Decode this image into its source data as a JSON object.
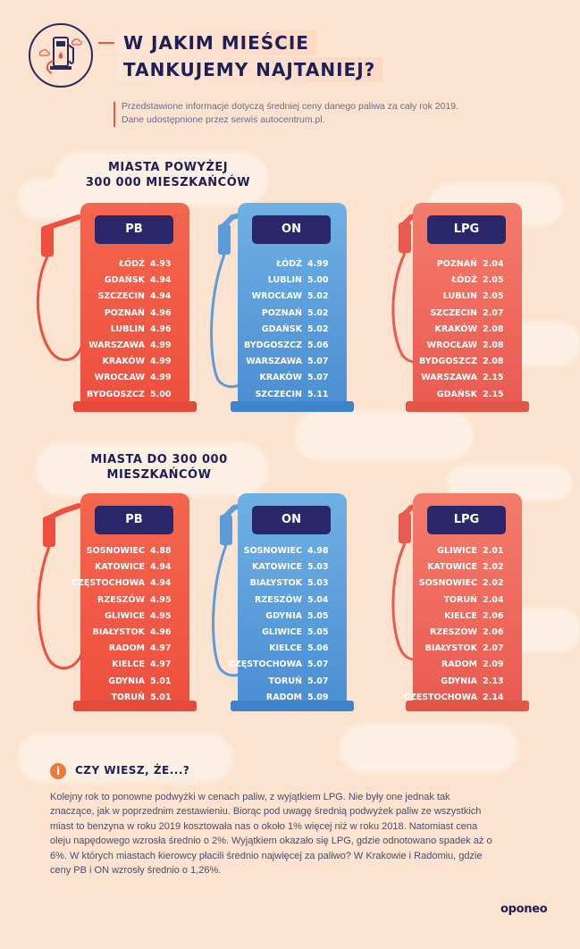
{
  "header": {
    "title_line1": "W JAKIM MIEŚCIE",
    "title_line2": "TANKUJEMY NAJTANIEJ?",
    "note": "Przedstawione informacje dotyczą średniej ceny danego paliwa za cały rok 2019. Dane udostępnione przez serwis autocentrum.pl."
  },
  "section1": {
    "heading_line1": "MIASTA POWYŻEJ",
    "heading_line2": "300 000 MIESZKAŃCÓW",
    "pumps": [
      {
        "label": "PB",
        "rows": [
          {
            "city": "ŁÓDŹ",
            "price": "4.93"
          },
          {
            "city": "GDAŃSK",
            "price": "4.94"
          },
          {
            "city": "SZCZECIN",
            "price": "4.94"
          },
          {
            "city": "POZNAŃ",
            "price": "4.96"
          },
          {
            "city": "LUBLIN",
            "price": "4.96"
          },
          {
            "city": "WARSZAWA",
            "price": "4.99"
          },
          {
            "city": "KRAKÓW",
            "price": "4.99"
          },
          {
            "city": "WROCŁAW",
            "price": "4.99"
          },
          {
            "city": "BYDGOSZCZ",
            "price": "5.00"
          }
        ]
      },
      {
        "label": "ON",
        "rows": [
          {
            "city": "ŁÓDŹ",
            "price": "4.99"
          },
          {
            "city": "LUBLIN",
            "price": "5.00"
          },
          {
            "city": "WROCŁAW",
            "price": "5.02"
          },
          {
            "city": "POZNAŃ",
            "price": "5.02"
          },
          {
            "city": "GDAŃSK",
            "price": "5.02"
          },
          {
            "city": "BYDGOSZCZ",
            "price": "5.06"
          },
          {
            "city": "WARSZAWA",
            "price": "5.07"
          },
          {
            "city": "KRAKÓW",
            "price": "5.07"
          },
          {
            "city": "SZCZECIN",
            "price": "5.11"
          }
        ]
      },
      {
        "label": "LPG",
        "rows": [
          {
            "city": "POZNAŃ",
            "price": "2.04"
          },
          {
            "city": "ŁÓDŹ",
            "price": "2.05"
          },
          {
            "city": "LUBLIN",
            "price": "2.05"
          },
          {
            "city": "SZCZECIN",
            "price": "2.07"
          },
          {
            "city": "KRAKÓW",
            "price": "2.08"
          },
          {
            "city": "WROCŁAW",
            "price": "2.08"
          },
          {
            "city": "BYDGOSZCZ",
            "price": "2.08"
          },
          {
            "city": "WARSZAWA",
            "price": "2.15"
          },
          {
            "city": "GDAŃSK",
            "price": "2.15"
          }
        ]
      }
    ]
  },
  "section2": {
    "heading_line1": "MIASTA DO 300 000",
    "heading_line2": "MIESZKAŃCÓW",
    "pumps": [
      {
        "label": "PB",
        "rows": [
          {
            "city": "SOSNOWIEC",
            "price": "4.88"
          },
          {
            "city": "KATOWICE",
            "price": "4.94"
          },
          {
            "city": "CZĘSTOCHOWA",
            "price": "4.94"
          },
          {
            "city": "RZESZÓW",
            "price": "4.95"
          },
          {
            "city": "GLIWICE",
            "price": "4.95"
          },
          {
            "city": "BIAŁYSTOK",
            "price": "4.96"
          },
          {
            "city": "RADOM",
            "price": "4.97"
          },
          {
            "city": "KIELCE",
            "price": "4.97"
          },
          {
            "city": "GDYNIA",
            "price": "5.01"
          },
          {
            "city": "TORUŃ",
            "price": "5.01"
          }
        ]
      },
      {
        "label": "ON",
        "rows": [
          {
            "city": "SOSNOWIEC",
            "price": "4.98"
          },
          {
            "city": "KATOWICE",
            "price": "5.03"
          },
          {
            "city": "BIAŁYSTOK",
            "price": "5.03"
          },
          {
            "city": "RZESZÓW",
            "price": "5.04"
          },
          {
            "city": "GDYNIA",
            "price": "5.05"
          },
          {
            "city": "GLIWICE",
            "price": "5.05"
          },
          {
            "city": "KIELCE",
            "price": "5.06"
          },
          {
            "city": "CZĘSTOCHOWA",
            "price": "5.07"
          },
          {
            "city": "TORUŃ",
            "price": "5.07"
          },
          {
            "city": "RADOM",
            "price": "5.09"
          }
        ]
      },
      {
        "label": "LPG",
        "rows": [
          {
            "city": "GLIWICE",
            "price": "2.01"
          },
          {
            "city": "KATOWICE",
            "price": "2.02"
          },
          {
            "city": "SOSNOWIEC",
            "price": "2.02"
          },
          {
            "city": "TORUŃ",
            "price": "2.04"
          },
          {
            "city": "KIELCE",
            "price": "2.06"
          },
          {
            "city": "RZESZÓW",
            "price": "2.06"
          },
          {
            "city": "BIAŁYSTOK",
            "price": "2.07"
          },
          {
            "city": "RADOM",
            "price": "2.09"
          },
          {
            "city": "GDYNIA",
            "price": "2.13"
          },
          {
            "city": "CZĘSTOCHOWA",
            "price": "2.14"
          }
        ]
      }
    ]
  },
  "info": {
    "icon": "i",
    "title": "CZY WIESZ, ŻE...?",
    "text": "Kolejny rok to ponowne podwyżki w cenach paliw, z wyjątkiem LPG. Nie były one jednak tak znaczące, jak w poprzednim zestawieniu. Biorąc pod uwagę średnią podwyżek paliw ze wszystkich miast to  benzyna w roku 2019 kosztowała nas o około 1% więcej niż w roku 2018. Natomiast cena oleju napędowego wzrosła średnio o 2%. Wyjątkiem okazało się LPG, gdzie odnotowano spadek aż o 6%. W których miastach kierowcy płacili średnio najwięcej za paliwo? W Krakowie i Radomiu, gdzie ceny PB i ON wzrosły średnio o 1,26%."
  },
  "brand": "oponeo",
  "colors": {
    "pb": "#ee4f3f",
    "on": "#4a8ed3",
    "lpg": "#ea5a51",
    "label_bg": "#29276a",
    "accent": "#e9573f"
  }
}
